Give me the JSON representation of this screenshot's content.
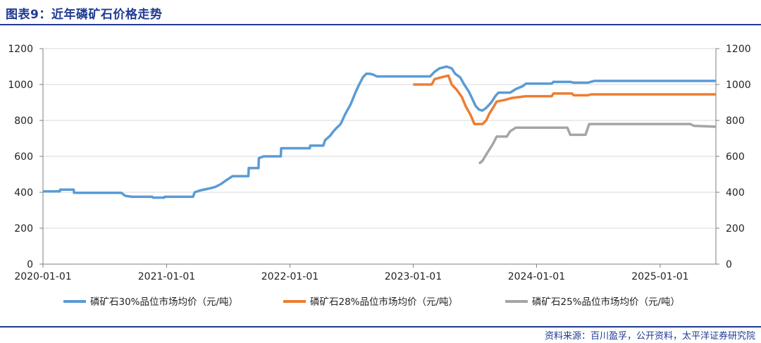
{
  "header": {
    "title": "图表9：近年磷矿石价格走势"
  },
  "source": "资料来源：百川盈孚，公开资料，太平洋证券研究院",
  "colors": {
    "accent": "#1f3a93",
    "series_30": "#5b9bd5",
    "series_28": "#ed7d31",
    "series_25": "#a5a5a5"
  },
  "chart_data": {
    "type": "line",
    "title": "",
    "xlabel": "",
    "ylabel": "",
    "xlim": [
      "2020-01-01",
      "2025-06-15"
    ],
    "ylim": [
      0,
      1200
    ],
    "y2lim": [
      0,
      1200
    ],
    "x_ticks": [
      "2020-01-01",
      "2021-01-01",
      "2022-01-01",
      "2023-01-01",
      "2024-01-01",
      "2025-01-01"
    ],
    "y_ticks": [
      0,
      200,
      400,
      600,
      800,
      1000,
      1200
    ],
    "grid": true,
    "legend": "bottom",
    "series": [
      {
        "name": "磷矿石30%品位市场均价（元/吨）",
        "color": "#5b9bd5",
        "points": [
          [
            "2020-01-01",
            405
          ],
          [
            "2020-02-20",
            405
          ],
          [
            "2020-02-21",
            415
          ],
          [
            "2020-04-01",
            415
          ],
          [
            "2020-04-02",
            397
          ],
          [
            "2020-08-20",
            397
          ],
          [
            "2020-09-01",
            380
          ],
          [
            "2020-09-20",
            375
          ],
          [
            "2020-11-20",
            375
          ],
          [
            "2020-11-21",
            370
          ],
          [
            "2020-12-25",
            370
          ],
          [
            "2020-12-26",
            375
          ],
          [
            "2021-03-20",
            375
          ],
          [
            "2021-03-25",
            400
          ],
          [
            "2021-04-10",
            410
          ],
          [
            "2021-05-05",
            420
          ],
          [
            "2021-05-25",
            430
          ],
          [
            "2021-06-10",
            445
          ],
          [
            "2021-06-25",
            465
          ],
          [
            "2021-07-15",
            490
          ],
          [
            "2021-08-31",
            490
          ],
          [
            "2021-09-01",
            535
          ],
          [
            "2021-09-30",
            535
          ],
          [
            "2021-10-01",
            590
          ],
          [
            "2021-10-15",
            600
          ],
          [
            "2021-12-05",
            600
          ],
          [
            "2021-12-06",
            645
          ],
          [
            "2022-03-01",
            645
          ],
          [
            "2022-03-02",
            660
          ],
          [
            "2022-04-10",
            660
          ],
          [
            "2022-04-15",
            690
          ],
          [
            "2022-04-30",
            715
          ],
          [
            "2022-05-10",
            740
          ],
          [
            "2022-05-20",
            760
          ],
          [
            "2022-05-31",
            780
          ],
          [
            "2022-06-15",
            840
          ],
          [
            "2022-06-30",
            890
          ],
          [
            "2022-07-15",
            960
          ],
          [
            "2022-07-25",
            1000
          ],
          [
            "2022-08-05",
            1040
          ],
          [
            "2022-08-15",
            1060
          ],
          [
            "2022-08-25",
            1060
          ],
          [
            "2022-09-05",
            1055
          ],
          [
            "2022-09-15",
            1045
          ],
          [
            "2023-01-25",
            1045
          ],
          [
            "2023-02-20",
            1045
          ],
          [
            "2023-03-05",
            1070
          ],
          [
            "2023-03-20",
            1090
          ],
          [
            "2023-04-10",
            1100
          ],
          [
            "2023-04-25",
            1090
          ],
          [
            "2023-05-05",
            1060
          ],
          [
            "2023-05-20",
            1040
          ],
          [
            "2023-06-01",
            1000
          ],
          [
            "2023-06-15",
            960
          ],
          [
            "2023-06-25",
            920
          ],
          [
            "2023-07-05",
            880
          ],
          [
            "2023-07-15",
            860
          ],
          [
            "2023-07-25",
            855
          ],
          [
            "2023-08-05",
            870
          ],
          [
            "2023-08-20",
            900
          ],
          [
            "2023-09-01",
            935
          ],
          [
            "2023-09-10",
            955
          ],
          [
            "2023-10-15",
            955
          ],
          [
            "2023-11-01",
            975
          ],
          [
            "2023-11-20",
            990
          ],
          [
            "2023-12-01",
            1005
          ],
          [
            "2024-01-01",
            1005
          ],
          [
            "2024-02-15",
            1005
          ],
          [
            "2024-02-20",
            1015
          ],
          [
            "2024-04-10",
            1015
          ],
          [
            "2024-04-20",
            1010
          ],
          [
            "2024-06-01",
            1010
          ],
          [
            "2024-06-10",
            1015
          ],
          [
            "2024-06-20",
            1020
          ],
          [
            "2025-06-15",
            1020
          ]
        ]
      },
      {
        "name": "磷矿石28%品位市场均价（元/吨）",
        "color": "#ed7d31",
        "points": [
          [
            "2023-01-01",
            1000
          ],
          [
            "2023-02-25",
            1000
          ],
          [
            "2023-03-05",
            1030
          ],
          [
            "2023-03-25",
            1040
          ],
          [
            "2023-04-15",
            1050
          ],
          [
            "2023-04-25",
            1000
          ],
          [
            "2023-05-10",
            970
          ],
          [
            "2023-05-25",
            930
          ],
          [
            "2023-06-05",
            880
          ],
          [
            "2023-06-20",
            830
          ],
          [
            "2023-07-01",
            780
          ],
          [
            "2023-07-25",
            780
          ],
          [
            "2023-08-05",
            800
          ],
          [
            "2023-08-15",
            840
          ],
          [
            "2023-08-25",
            870
          ],
          [
            "2023-09-05",
            905
          ],
          [
            "2023-10-01",
            915
          ],
          [
            "2023-10-20",
            925
          ],
          [
            "2023-12-01",
            935
          ],
          [
            "2024-02-15",
            935
          ],
          [
            "2024-02-20",
            950
          ],
          [
            "2024-04-15",
            950
          ],
          [
            "2024-04-20",
            940
          ],
          [
            "2024-06-01",
            940
          ],
          [
            "2024-06-10",
            945
          ],
          [
            "2025-06-15",
            945
          ]
        ]
      },
      {
        "name": "磷矿石25%品位市场均价（元/吨）",
        "color": "#a5a5a5",
        "points": [
          [
            "2023-07-15",
            560
          ],
          [
            "2023-07-25",
            575
          ],
          [
            "2023-08-05",
            610
          ],
          [
            "2023-08-15",
            640
          ],
          [
            "2023-08-25",
            670
          ],
          [
            "2023-09-05",
            710
          ],
          [
            "2023-10-05",
            710
          ],
          [
            "2023-10-15",
            740
          ],
          [
            "2023-11-01",
            760
          ],
          [
            "2024-04-01",
            760
          ],
          [
            "2024-04-10",
            720
          ],
          [
            "2024-05-25",
            720
          ],
          [
            "2024-06-05",
            780
          ],
          [
            "2025-04-01",
            780
          ],
          [
            "2025-04-10",
            770
          ],
          [
            "2025-06-15",
            765
          ]
        ]
      }
    ]
  }
}
